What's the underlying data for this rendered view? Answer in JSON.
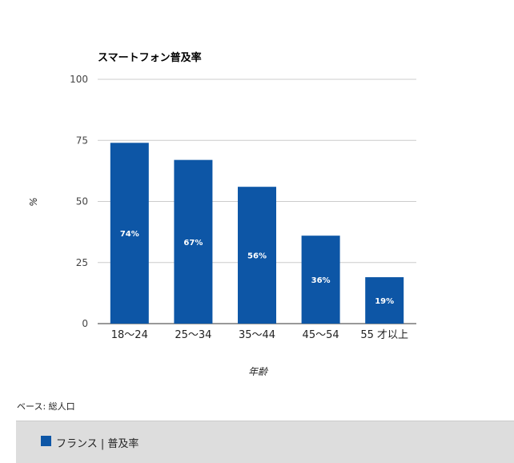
{
  "chart_data": {
    "type": "bar",
    "title": "スマートフォン普及率",
    "xlabel": "年齢",
    "ylabel": "%",
    "categories": [
      "18〜24",
      "25〜34",
      "35〜44",
      "45〜54",
      "55 才以上"
    ],
    "series": [
      {
        "name": "フランス | 普及率",
        "values": [
          74,
          67,
          56,
          36,
          19
        ],
        "labels": [
          "74%",
          "67%",
          "56%",
          "36%",
          "19%"
        ]
      }
    ],
    "ylim": [
      0,
      100
    ],
    "yticks": [
      "0",
      "25",
      "50",
      "75",
      "100"
    ],
    "grid": true,
    "legend_position": "bottom",
    "bar_color": "#0d56a6"
  },
  "footnote": "ベース: 総人口"
}
